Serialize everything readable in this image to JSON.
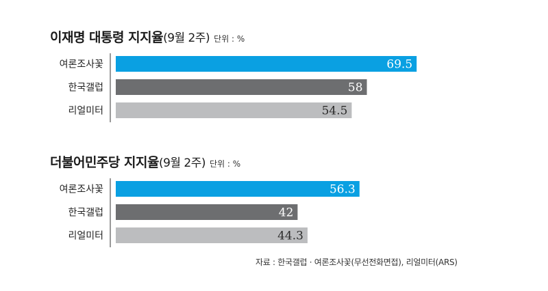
{
  "charts": [
    {
      "title": "이재명 대통령 지지율",
      "period": "(9월 2주)",
      "unit": "단위 : %"
    },
    {
      "title": "더불어민주당 지지율",
      "period": "(9월 2주)",
      "unit": "단위 : %"
    }
  ],
  "source": "자료 : 한국갤럽 · 여론조사꽃(무선전화면접), 리얼미터(ARS)",
  "colors": {
    "여론조사꽃": "#0aa0e2",
    "한국갤럽": "#6d6e70",
    "리얼미터": "#bcbdbf",
    "axis": "#333333"
  },
  "chart_data": [
    {
      "type": "bar",
      "orientation": "horizontal",
      "title": "이재명 대통령 지지율(9월 2주)",
      "categories": [
        "여론조사꽃",
        "한국갤럽",
        "리얼미터"
      ],
      "values": [
        69.5,
        58,
        54.5
      ],
      "value_labels": [
        "69.5",
        "58",
        "54.5"
      ],
      "xlim": [
        0,
        100
      ],
      "grid": false
    },
    {
      "type": "bar",
      "orientation": "horizontal",
      "title": "더불어민주당 지지율(9월 2주)",
      "categories": [
        "여론조사꽃",
        "한국갤럽",
        "리얼미터"
      ],
      "values": [
        56.3,
        42,
        44.3
      ],
      "value_labels": [
        "56.3",
        "42",
        "44.3"
      ],
      "xlim": [
        0,
        100
      ],
      "grid": false
    }
  ]
}
